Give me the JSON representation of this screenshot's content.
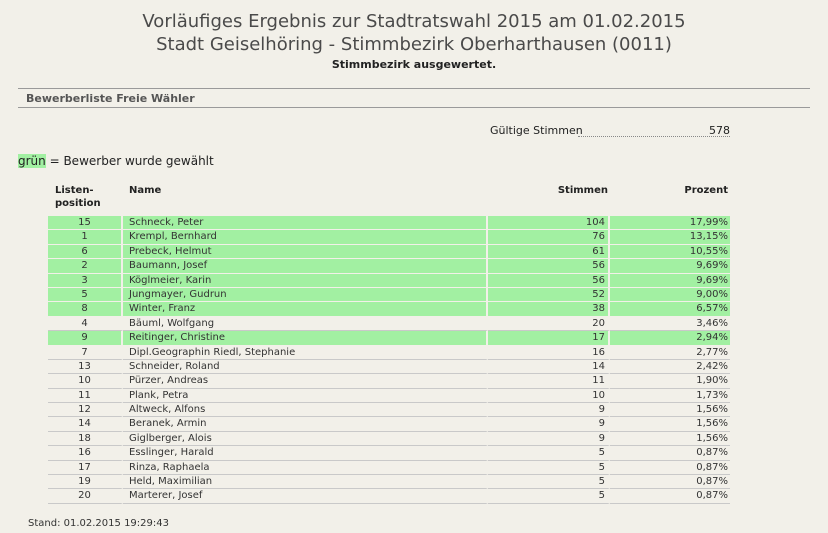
{
  "header": {
    "title_line1": "Vorläufiges Ergebnis zur Stadtratswahl 2015 am 01.02.2015",
    "title_line2": "Stadt Geiselhöring - Stimmbezirk Oberharthausen (0011)",
    "status": "Stimmbezirk ausgewertet."
  },
  "section": {
    "title": "Bewerberliste Freie Wähler"
  },
  "valid_votes": {
    "label": "Gültige Stimmen",
    "value": "578"
  },
  "legend": {
    "highlight_word": "grün",
    "text": " = Bewerber wurde gewählt",
    "highlight_color": "#a2f0a2"
  },
  "table": {
    "headers": {
      "position_line1": "Listen-",
      "position_line2": "position",
      "name": "Name",
      "votes": "Stimmen",
      "percent": "Prozent"
    },
    "rows": [
      {
        "pos": "15",
        "name": "Schneck, Peter",
        "votes": "104",
        "pct": "17,99%",
        "elected": true
      },
      {
        "pos": "1",
        "name": "Krempl, Bernhard",
        "votes": "76",
        "pct": "13,15%",
        "elected": true
      },
      {
        "pos": "6",
        "name": "Prebeck, Helmut",
        "votes": "61",
        "pct": "10,55%",
        "elected": true
      },
      {
        "pos": "2",
        "name": "Baumann, Josef",
        "votes": "56",
        "pct": "9,69%",
        "elected": true
      },
      {
        "pos": "3",
        "name": "Köglmeier, Karin",
        "votes": "56",
        "pct": "9,69%",
        "elected": true
      },
      {
        "pos": "5",
        "name": "Jungmayer, Gudrun",
        "votes": "52",
        "pct": "9,00%",
        "elected": true
      },
      {
        "pos": "8",
        "name": "Winter, Franz",
        "votes": "38",
        "pct": "6,57%",
        "elected": true
      },
      {
        "pos": "4",
        "name": "Bäuml, Wolfgang",
        "votes": "20",
        "pct": "3,46%",
        "elected": false
      },
      {
        "pos": "9",
        "name": "Reitinger, Christine",
        "votes": "17",
        "pct": "2,94%",
        "elected": true
      },
      {
        "pos": "7",
        "name": "Dipl.Geographin Riedl, Stephanie",
        "votes": "16",
        "pct": "2,77%",
        "elected": false
      },
      {
        "pos": "13",
        "name": "Schneider, Roland",
        "votes": "14",
        "pct": "2,42%",
        "elected": false
      },
      {
        "pos": "10",
        "name": "Pürzer, Andreas",
        "votes": "11",
        "pct": "1,90%",
        "elected": false
      },
      {
        "pos": "11",
        "name": "Plank, Petra",
        "votes": "10",
        "pct": "1,73%",
        "elected": false
      },
      {
        "pos": "12",
        "name": "Altweck, Alfons",
        "votes": "9",
        "pct": "1,56%",
        "elected": false
      },
      {
        "pos": "14",
        "name": "Beranek, Armin",
        "votes": "9",
        "pct": "1,56%",
        "elected": false
      },
      {
        "pos": "18",
        "name": "Giglberger, Alois",
        "votes": "9",
        "pct": "1,56%",
        "elected": false
      },
      {
        "pos": "16",
        "name": "Esslinger, Harald",
        "votes": "5",
        "pct": "0,87%",
        "elected": false
      },
      {
        "pos": "17",
        "name": "Rinza, Raphaela",
        "votes": "5",
        "pct": "0,87%",
        "elected": false
      },
      {
        "pos": "19",
        "name": "Held, Maximilian",
        "votes": "5",
        "pct": "0,87%",
        "elected": false
      },
      {
        "pos": "20",
        "name": "Marterer, Josef",
        "votes": "5",
        "pct": "0,87%",
        "elected": false
      }
    ]
  },
  "footer": {
    "timestamp": "Stand: 01.02.2015 19:29:43"
  }
}
